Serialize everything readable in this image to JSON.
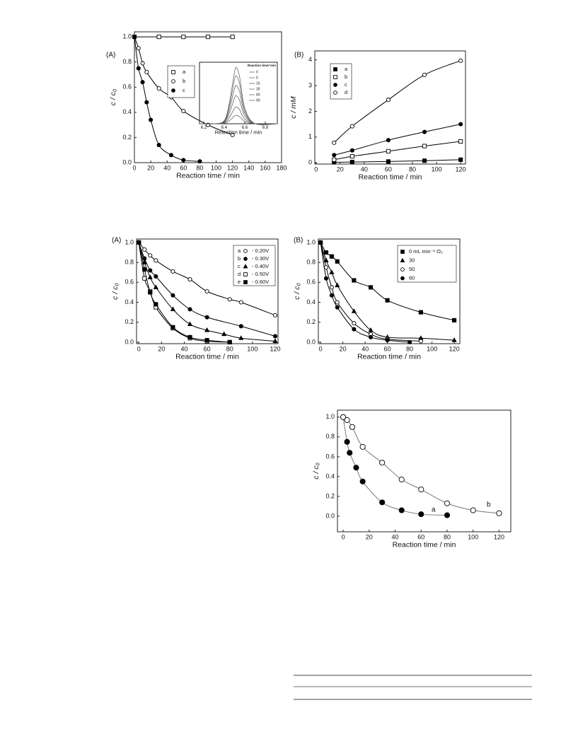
{
  "chart_data": [
    {
      "type": "scatter",
      "fit": true,
      "panel_label": "(A)",
      "x_label": "Reaction time / min",
      "y_label": "c / c₀",
      "xlim": [
        0,
        180
      ],
      "xticks": [
        0,
        20,
        40,
        60,
        80,
        100,
        120,
        140,
        160,
        180
      ],
      "ylim": [
        0,
        1.04
      ],
      "yticks": [
        {
          "value": 0,
          "label": "0.0"
        },
        0.2,
        0.4,
        0.6,
        0.8,
        {
          "value": 1,
          "label": "1.0"
        }
      ],
      "series": [
        {
          "name": "a",
          "marker": "square-open",
          "color": "#000000",
          "x": [
            0,
            30,
            60,
            90,
            120
          ],
          "values": [
            1.0,
            1.0,
            1.0,
            1.0,
            1.0
          ]
        },
        {
          "name": "b",
          "marker": "circle-open",
          "color": "#000000",
          "x": [
            0,
            5,
            10,
            15,
            30,
            45,
            60,
            90,
            120
          ],
          "values": [
            1.0,
            0.91,
            0.79,
            0.72,
            0.59,
            0.52,
            0.41,
            0.3,
            0.22
          ]
        },
        {
          "name": "c",
          "marker": "circle-filled",
          "color": "#000000",
          "x": [
            0,
            5,
            10,
            15,
            20,
            30,
            45,
            60,
            80
          ],
          "values": [
            1.0,
            0.75,
            0.64,
            0.48,
            0.34,
            0.14,
            0.06,
            0.02,
            0.01
          ]
        }
      ],
      "inset": {
        "type": "line",
        "x_label": "Retention time / min",
        "legend_title": "Reaction time/ min",
        "xlim": [
          6.159,
          6.917
        ],
        "xticks": [
          6.2,
          6.4,
          6.6,
          6.8
        ],
        "ylim": [
          0,
          1.1
        ],
        "x": [
          6.16,
          6.3,
          6.4,
          6.45,
          6.5,
          6.52,
          6.55,
          6.6,
          6.7,
          6.92
        ],
        "series": [
          {
            "name": "0",
            "color": "#555555",
            "values": [
              0,
              0,
              0.056,
              0.375,
              0.923,
              1,
              0.835,
              0.278,
              0.002,
              0
            ]
          },
          {
            "name": "5",
            "color": "#555555",
            "values": [
              0,
              0,
              0.048,
              0.319,
              0.785,
              0.85,
              0.71,
              0.236,
              0.001,
              0
            ]
          },
          {
            "name": "15",
            "color": "#555555",
            "values": [
              0,
              0,
              0.038,
              0.255,
              0.628,
              0.68,
              0.568,
              0.189,
              0.001,
              0
            ]
          },
          {
            "name": "30",
            "color": "#555555",
            "values": [
              0,
              0,
              0.028,
              0.188,
              0.462,
              0.5,
              0.418,
              0.139,
              0.001,
              0
            ]
          },
          {
            "name": "60",
            "color": "#555555",
            "values": [
              0,
              0,
              0.017,
              0.113,
              0.277,
              0.3,
              0.251,
              0.083,
              0,
              0
            ]
          },
          {
            "name": "90",
            "color": "#555555",
            "values": [
              0,
              0,
              0.008,
              0.056,
              0.138,
              0.15,
              0.125,
              0.042,
              0,
              0
            ]
          }
        ]
      }
    },
    {
      "type": "scatter",
      "fit": true,
      "panel_label": "(B)",
      "x_label": "Reaction time / min",
      "y_label": "c / mM",
      "xlim": [
        -1,
        124
      ],
      "xticks": [
        0,
        20,
        40,
        60,
        80,
        100,
        120
      ],
      "ylim": [
        -0.05,
        4.35
      ],
      "yticks": [
        0,
        1,
        2,
        3,
        4
      ],
      "series": [
        {
          "name": "a",
          "marker": "square-filled",
          "color": "#000000",
          "x": [
            15,
            30,
            60,
            90,
            120
          ],
          "values": [
            0.02,
            0.03,
            0.05,
            0.08,
            0.12
          ]
        },
        {
          "name": "b",
          "marker": "square-open",
          "color": "#000000",
          "x": [
            15,
            30,
            60,
            90,
            120
          ],
          "values": [
            0.12,
            0.25,
            0.45,
            0.65,
            0.83
          ]
        },
        {
          "name": "c",
          "marker": "circle-filled",
          "color": "#000000",
          "x": [
            15,
            30,
            60,
            90,
            120
          ],
          "values": [
            0.3,
            0.48,
            0.88,
            1.2,
            1.5
          ]
        },
        {
          "name": "d",
          "marker": "circle-open",
          "color": "#000000",
          "x": [
            15,
            30,
            60,
            90,
            120
          ],
          "values": [
            0.78,
            1.42,
            2.45,
            3.42,
            3.97
          ]
        }
      ]
    },
    {
      "type": "scatter",
      "fit": true,
      "panel_label": "(A)",
      "x_label": "Reaction time / min",
      "y_label": "c / c₀",
      "xlim": [
        -2,
        122.5
      ],
      "xticks": [
        0,
        20,
        40,
        60,
        80,
        100,
        120
      ],
      "ylim": [
        -0.015,
        1.035
      ],
      "yticks": [
        {
          "value": 0,
          "label": "0.0"
        },
        0.2,
        0.4,
        0.6,
        0.8,
        {
          "value": 1,
          "label": "1.0"
        }
      ],
      "series": [
        {
          "name": "a",
          "potential": "- 0.20V",
          "marker": "circle-open",
          "color": "#000000",
          "x": [
            0,
            5,
            10,
            15,
            30,
            45,
            60,
            80,
            90,
            120
          ],
          "values": [
            1.0,
            0.93,
            0.87,
            0.82,
            0.71,
            0.63,
            0.51,
            0.43,
            0.4,
            0.27
          ]
        },
        {
          "name": "b",
          "potential": "- 0.30V",
          "marker": "circle-filled",
          "color": "#000000",
          "x": [
            0,
            5,
            10,
            15,
            30,
            45,
            60,
            90,
            120
          ],
          "values": [
            1.0,
            0.84,
            0.72,
            0.66,
            0.47,
            0.33,
            0.25,
            0.16,
            0.06
          ]
        },
        {
          "name": "c",
          "potential": "- 0.40V",
          "marker": "triangle-filled",
          "color": "#000000",
          "x": [
            0,
            5,
            10,
            15,
            30,
            45,
            60,
            75,
            90,
            120
          ],
          "values": [
            1.0,
            0.8,
            0.65,
            0.55,
            0.33,
            0.18,
            0.12,
            0.08,
            0.04,
            0.01
          ]
        },
        {
          "name": "d",
          "potential": "- 0.50V",
          "marker": "square-open",
          "color": "#000000",
          "x": [
            0,
            5,
            10,
            15,
            30,
            45,
            60,
            80
          ],
          "values": [
            1.0,
            0.64,
            0.51,
            0.35,
            0.14,
            0.04,
            0.01,
            0.0
          ]
        },
        {
          "name": "e",
          "potential": "- 0.60V",
          "marker": "square-filled",
          "color": "#000000",
          "x": [
            0,
            5,
            10,
            15,
            30,
            45,
            60,
            80
          ],
          "values": [
            1.0,
            0.73,
            0.5,
            0.38,
            0.15,
            0.05,
            0.02,
            0.0
          ]
        }
      ]
    },
    {
      "type": "scatter",
      "fit": true,
      "panel_label": "(B)",
      "x_label": "Reaction time / min",
      "y_label": "c / c₀",
      "xlim": [
        -2,
        125
      ],
      "xticks": [
        0,
        20,
        40,
        60,
        80,
        100,
        120
      ],
      "ylim": [
        -0.015,
        1.035
      ],
      "yticks": [
        {
          "value": 0,
          "label": "0.0"
        },
        0.2,
        0.4,
        0.6,
        0.8,
        {
          "value": 1,
          "label": "1.0"
        }
      ],
      "series": [
        {
          "name": "0 mL min⁻¹ O₂",
          "marker": "square-filled",
          "color": "#000000",
          "x": [
            0,
            5,
            10,
            15,
            30,
            45,
            60,
            90,
            120
          ],
          "values": [
            1.0,
            0.9,
            0.86,
            0.81,
            0.62,
            0.55,
            0.42,
            0.3,
            0.22
          ]
        },
        {
          "name": "30",
          "marker": "triangle-filled",
          "color": "#000000",
          "x": [
            0,
            5,
            10,
            15,
            30,
            45,
            60,
            90,
            120
          ],
          "values": [
            1.0,
            0.82,
            0.7,
            0.57,
            0.31,
            0.12,
            0.05,
            0.04,
            0.02
          ]
        },
        {
          "name": "50",
          "marker": "circle-open",
          "color": "#000000",
          "x": [
            0,
            5,
            10,
            15,
            30,
            45,
            60,
            90
          ],
          "values": [
            1.0,
            0.75,
            0.55,
            0.4,
            0.19,
            0.08,
            0.03,
            0.01
          ]
        },
        {
          "name": "60",
          "marker": "circle-filled",
          "color": "#000000",
          "x": [
            0,
            5,
            10,
            15,
            30,
            45,
            60,
            80
          ],
          "values": [
            1.0,
            0.64,
            0.47,
            0.35,
            0.13,
            0.05,
            0.02,
            0.0
          ]
        }
      ]
    },
    {
      "type": "scatter",
      "fit": true,
      "x_label": "Reaction time / min",
      "y_label": "c / c₀",
      "xlim": [
        -4.4,
        129
      ],
      "xticks": [
        0,
        20,
        40,
        60,
        80,
        100,
        120
      ],
      "ylim": [
        -0.157,
        1.07
      ],
      "yticks": [
        {
          "value": 0,
          "label": "0.0"
        },
        0.2,
        0.4,
        0.6,
        0.8,
        {
          "value": 1,
          "label": "1.0"
        }
      ],
      "series": [
        {
          "name": "a",
          "marker": "circle-filled",
          "color": "#000000",
          "x": [
            0,
            3,
            5,
            10,
            15,
            30,
            45,
            60,
            80
          ],
          "values": [
            1.0,
            0.75,
            0.64,
            0.49,
            0.35,
            0.14,
            0.06,
            0.02,
            0.01
          ]
        },
        {
          "name": "b",
          "marker": "circle-open",
          "color": "#000000",
          "x": [
            0,
            3,
            7,
            15,
            30,
            45,
            60,
            80,
            100,
            120
          ],
          "values": [
            1.0,
            0.97,
            0.9,
            0.7,
            0.54,
            0.37,
            0.27,
            0.13,
            0.06,
            0.03
          ]
        }
      ]
    }
  ]
}
